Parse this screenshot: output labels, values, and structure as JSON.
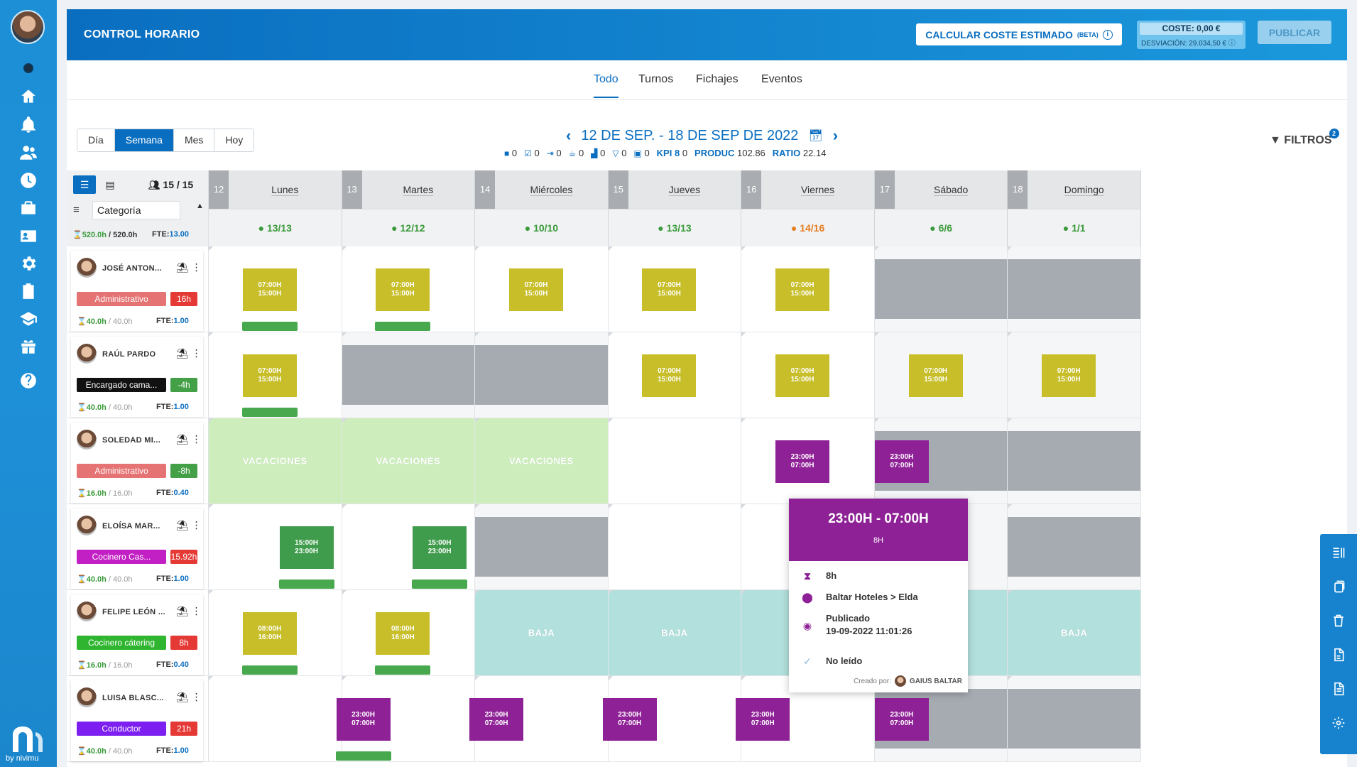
{
  "header": {
    "title": "CONTROL HORARIO",
    "coste_button": "CALCULAR COSTE ESTIMADO",
    "coste_beta": "(BETA)",
    "coste": "COSTE: 0,00 €",
    "desviacion": "DESVIACIÓN: 29.034,50 €",
    "publicar": "PUBLICAR"
  },
  "tabs": [
    "Todo",
    "Turnos",
    "Fichajes",
    "Eventos"
  ],
  "view_modes": [
    "Día",
    "Semana",
    "Mes",
    "Hoy"
  ],
  "date_range": "12 DE SEP. - 18 DE SEP DE 2022",
  "kpis": {
    "counts": [
      "0",
      "0",
      "0",
      "0",
      "0",
      "0",
      "0"
    ],
    "kpi_label": "KPI 8",
    "kpi_value": "0",
    "produc_label": "PRODUC",
    "produc_value": "102.86",
    "ratio_label": "RATIO",
    "ratio_value": "22.14"
  },
  "filtros": {
    "label": "FILTROS",
    "count": "2"
  },
  "left_header": {
    "count": "15 / 15",
    "category": "Categoría",
    "hours_done": "520.0h",
    "hours_total": "/ 520.0h",
    "fte_label": "FTE:",
    "fte_value": "13.00"
  },
  "days": [
    {
      "num": "12",
      "name": "Lunes",
      "count": "13/13",
      "warn": false
    },
    {
      "num": "13",
      "name": "Martes",
      "count": "12/12",
      "warn": false
    },
    {
      "num": "14",
      "name": "Miércoles",
      "count": "10/10",
      "warn": false
    },
    {
      "num": "15",
      "name": "Jueves",
      "count": "13/13",
      "warn": false
    },
    {
      "num": "16",
      "name": "Viernes",
      "count": "14/16",
      "warn": true
    },
    {
      "num": "17",
      "name": "Sábado",
      "count": "6/6",
      "warn": false
    },
    {
      "num": "18",
      "name": "Domingo",
      "count": "1/1",
      "warn": false
    }
  ],
  "employees": [
    {
      "name": "JOSÉ ANTON...",
      "category": "Administrativo",
      "cat_color": "#e57373",
      "balance": "16h",
      "bal_color": "#e53935",
      "hours": "40.0h",
      "hours_total": "/ 40.0h",
      "fte": "1.00"
    },
    {
      "name": "RAÚL PARDO",
      "category": "Encargado cama...",
      "cat_color": "#111111",
      "balance": "-4h",
      "bal_color": "#43a047",
      "hours": "40.0h",
      "hours_total": "/ 40.0h",
      "fte": "1.00"
    },
    {
      "name": "SOLEDAD MI...",
      "category": "Administrativo",
      "cat_color": "#e57373",
      "balance": "-8h",
      "bal_color": "#43a047",
      "hours": "16.0h",
      "hours_total": "/ 16.0h",
      "fte": "0.40"
    },
    {
      "name": "ELOÍSA MAR...",
      "category": "Cocinero Cas...",
      "cat_color": "#c21fc4",
      "balance": "15.92h",
      "bal_color": "#e53935",
      "hours": "40.0h",
      "hours_total": "/ 40.0h",
      "fte": "1.00"
    },
    {
      "name": "FELIPE LEÓN ...",
      "category": "Cocinero cátering",
      "cat_color": "#2fb52f",
      "balance": "8h",
      "bal_color": "#e53935",
      "hours": "16.0h",
      "hours_total": "/ 16.0h",
      "fte": "0.40"
    },
    {
      "name": "LUISA BLASC...",
      "category": "Conductor",
      "cat_color": "#7c1ff0",
      "balance": "21h",
      "bal_color": "#e53935",
      "hours": "40.0h",
      "hours_total": "/ 40.0h",
      "fte": "1.00"
    }
  ],
  "schedule": [
    [
      {
        "t": "s",
        "c": "y",
        "a": "07:00H",
        "b": "15:00H",
        "bar": true
      },
      {
        "t": "s",
        "c": "y",
        "a": "07:00H",
        "b": "15:00H",
        "bar": true
      },
      {
        "t": "s",
        "c": "y",
        "a": "07:00H",
        "b": "15:00H"
      },
      {
        "t": "s",
        "c": "y",
        "a": "07:00H",
        "b": "15:00H"
      },
      {
        "t": "s",
        "c": "y",
        "a": "07:00H",
        "b": "15:00H"
      },
      {
        "t": "gray"
      },
      {
        "t": "gray"
      }
    ],
    [
      {
        "t": "s",
        "c": "y",
        "a": "07:00H",
        "b": "15:00H",
        "bar": true
      },
      {
        "t": "gray"
      },
      {
        "t": "gray"
      },
      {
        "t": "s",
        "c": "y",
        "a": "07:00H",
        "b": "15:00H"
      },
      {
        "t": "s",
        "c": "y",
        "a": "07:00H",
        "b": "15:00H"
      },
      {
        "t": "s",
        "c": "y",
        "a": "07:00H",
        "b": "15:00H",
        "bg": "off"
      },
      {
        "t": "s",
        "c": "y",
        "a": "07:00H",
        "b": "15:00H",
        "bg": "off"
      }
    ],
    [
      {
        "t": "vac",
        "label": "VACACIONES"
      },
      {
        "t": "vac",
        "label": "VACACIONES"
      },
      {
        "t": "vac",
        "label": "VACACIONES"
      },
      {
        "t": "empty"
      },
      {
        "t": "s",
        "c": "p",
        "a": "23:00H",
        "b": "07:00H"
      },
      {
        "t": "gray",
        "c": "p",
        "a": "23:00H",
        "b": "07:00H"
      },
      {
        "t": "gray"
      }
    ],
    [
      {
        "t": "s",
        "c": "g",
        "a": "15:00H",
        "b": "23:00H",
        "bar": true,
        "right": true
      },
      {
        "t": "s",
        "c": "g",
        "a": "15:00H",
        "b": "23:00H",
        "bar": true,
        "right": true
      },
      {
        "t": "gray"
      },
      {
        "t": "empty"
      },
      {
        "t": "s",
        "c": "g",
        "a": "15:00H",
        "b": "23:00H",
        "right": true
      },
      {
        "t": "s",
        "c": "g",
        "a": "15:00H",
        "b": "23:00H",
        "bg": "off"
      },
      {
        "t": "gray"
      }
    ],
    [
      {
        "t": "s",
        "c": "y",
        "a": "08:00H",
        "b": "16:00H",
        "bar": true
      },
      {
        "t": "s",
        "c": "y",
        "a": "08:00H",
        "b": "16:00H",
        "bar": true
      },
      {
        "t": "baja",
        "label": "BAJA"
      },
      {
        "t": "baja",
        "label": "BAJA"
      },
      {
        "t": "baja",
        "label": ""
      },
      {
        "t": "baja",
        "label": "BAJA"
      },
      {
        "t": "baja",
        "label": "BAJA"
      }
    ],
    [
      {
        "t": "empty"
      },
      {
        "t": "s",
        "c": "p",
        "a": "23:00H",
        "b": "07:00H",
        "bar": true,
        "left": true
      },
      {
        "t": "s",
        "c": "p",
        "a": "23:00H",
        "b": "07:00H",
        "left": true
      },
      {
        "t": "s",
        "c": "p",
        "a": "23:00H",
        "b": "07:00H",
        "left": true
      },
      {
        "t": "s",
        "c": "p",
        "a": "23:00H",
        "b": "07:00H",
        "left": true
      },
      {
        "t": "gray",
        "c": "p",
        "a": "23:00H",
        "b": "07:00H"
      },
      {
        "t": "gray"
      }
    ]
  ],
  "popover": {
    "time": "23:00H - 07:00H",
    "hours_header": "8H",
    "hours": "8h",
    "location": "Baltar Hoteles > Elda",
    "status": "Publicado",
    "status_date": "19-09-2022 11:01:26",
    "read": "No leído",
    "creator_label": "Creado por:",
    "creator": "GAIUS BALTAR"
  },
  "brand": {
    "by": "by",
    "name": "nivimu"
  }
}
